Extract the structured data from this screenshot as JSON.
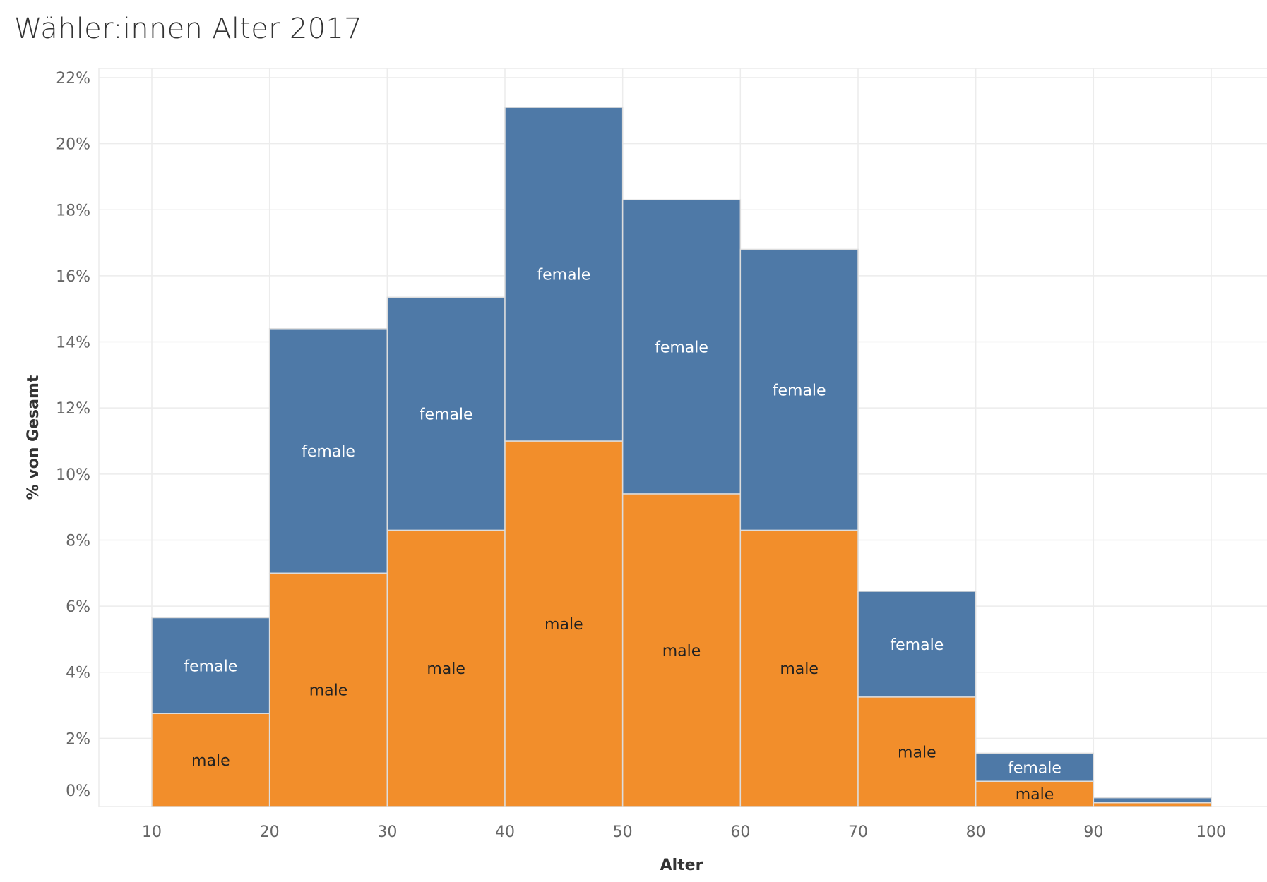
{
  "chart_data": {
    "type": "bar",
    "title": "Wähler:innen Alter 2017",
    "xlabel": "Alter",
    "ylabel": "% von Gesamt",
    "x_bins": [
      10,
      20,
      30,
      40,
      50,
      60,
      70,
      80,
      90,
      100
    ],
    "x_ticks": [
      "10",
      "20",
      "30",
      "40",
      "50",
      "60",
      "70",
      "80",
      "90",
      "100"
    ],
    "y_ticks": [
      "0%",
      "2%",
      "4%",
      "6%",
      "8%",
      "10%",
      "12%",
      "14%",
      "16%",
      "18%",
      "20%",
      "22%"
    ],
    "ylim": [
      0,
      22
    ],
    "stacked": true,
    "grid": true,
    "series": [
      {
        "name": "male",
        "color": "#F28E2B",
        "label_color": "#222222",
        "values": [
          2.75,
          7.0,
          8.3,
          11.0,
          9.4,
          8.3,
          3.25,
          0.7,
          0.05
        ]
      },
      {
        "name": "female",
        "color": "#4E79A7",
        "label_color": "#ffffff",
        "values": [
          2.9,
          7.4,
          7.05,
          10.1,
          8.9,
          8.5,
          3.2,
          0.85,
          0.15
        ]
      }
    ],
    "segment_labels": {
      "male": [
        "male",
        "male",
        "male",
        "male",
        "male",
        "male",
        "male",
        "male",
        ""
      ],
      "female": [
        "female",
        "female",
        "female",
        "female",
        "female",
        "female",
        "female",
        "female",
        ""
      ]
    }
  }
}
